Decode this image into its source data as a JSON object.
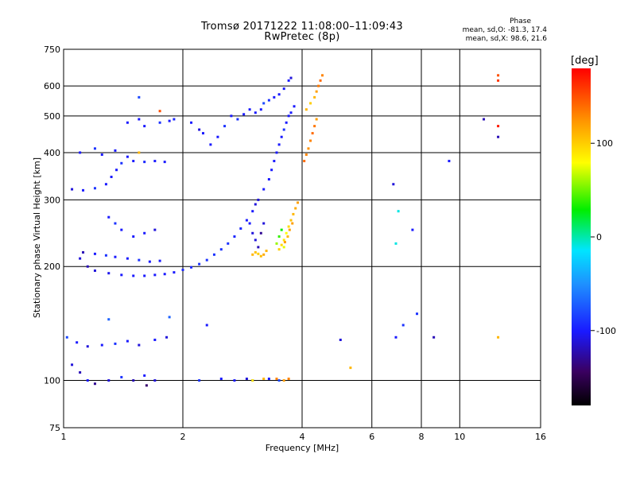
{
  "header": {
    "title_line1": "Tromsø 20171222 11:08:00–11:09:43",
    "title_line2": "RwPretec (8p)",
    "phase_title": "Phase",
    "phase_line1": "mean, sd,O:  -81.3, 17.4",
    "phase_line2": "mean, sd,X:  98.6, 21.6"
  },
  "colorbar": {
    "unit": "[deg]",
    "ticks": [
      "100",
      "0",
      "-100"
    ],
    "tick_values": [
      100,
      0,
      -100
    ],
    "range": [
      -180,
      180
    ]
  },
  "chart_data": {
    "type": "scatter",
    "title": "Tromsø 20171222 11:08:00–11:09:43",
    "subtitle": "RwPretec (8p)",
    "xlabel": "Frequency [MHz]",
    "ylabel": "Stationary phase Virtual Height [km]",
    "x_scale": "log",
    "y_scale": "log",
    "xlim": [
      1,
      16
    ],
    "ylim": [
      75,
      750
    ],
    "xticks": [
      "1",
      "2",
      "4",
      "6",
      "8",
      "10",
      "16"
    ],
    "xtick_values": [
      1,
      2,
      4,
      6,
      8,
      10,
      16
    ],
    "yticks": [
      "75",
      "100",
      "200",
      "300",
      "400",
      "500",
      "600",
      "750"
    ],
    "ytick_values": [
      75,
      100,
      200,
      300,
      400,
      500,
      600,
      750
    ],
    "grid": true,
    "series": [
      {
        "name": "O",
        "points": [
          [
            1.05,
            110,
            -110
          ],
          [
            1.1,
            105,
            -120
          ],
          [
            1.15,
            100,
            -100
          ],
          [
            1.2,
            98,
            -130
          ],
          [
            1.3,
            100,
            -110
          ],
          [
            1.4,
            102,
            -90
          ],
          [
            1.5,
            100,
            -120
          ],
          [
            1.6,
            103,
            -100
          ],
          [
            1.7,
            100,
            -110
          ],
          [
            1.62,
            97,
            -140
          ],
          [
            1.02,
            130,
            -80
          ],
          [
            1.08,
            126,
            -100
          ],
          [
            1.15,
            123,
            -110
          ],
          [
            1.25,
            124,
            -100
          ],
          [
            1.35,
            125,
            -90
          ],
          [
            1.45,
            127,
            -100
          ],
          [
            1.55,
            124,
            -110
          ],
          [
            1.7,
            128,
            -100
          ],
          [
            1.82,
            130,
            -110
          ],
          [
            1.3,
            145,
            -70
          ],
          [
            1.1,
            210,
            -110
          ],
          [
            1.15,
            200,
            -120
          ],
          [
            1.2,
            195,
            -110
          ],
          [
            1.3,
            192,
            -105
          ],
          [
            1.4,
            190,
            -100
          ],
          [
            1.5,
            189,
            -100
          ],
          [
            1.6,
            189,
            -100
          ],
          [
            1.7,
            190,
            -100
          ],
          [
            1.8,
            191,
            -100
          ],
          [
            1.9,
            193,
            -100
          ],
          [
            2.0,
            196,
            -95
          ],
          [
            2.1,
            199,
            -95
          ],
          [
            2.2,
            203,
            -90
          ],
          [
            2.3,
            208,
            -90
          ],
          [
            2.4,
            215,
            -90
          ],
          [
            2.5,
            222,
            -90
          ],
          [
            2.6,
            230,
            -90
          ],
          [
            2.7,
            240,
            -95
          ],
          [
            2.8,
            252,
            -95
          ],
          [
            2.9,
            265,
            -100
          ],
          [
            3.0,
            280,
            -100
          ],
          [
            3.05,
            292,
            -110
          ],
          [
            1.12,
            218,
            -120
          ],
          [
            1.2,
            216,
            -100
          ],
          [
            1.28,
            214,
            -90
          ],
          [
            1.35,
            212,
            -100
          ],
          [
            1.45,
            210,
            -100
          ],
          [
            1.55,
            208,
            -90
          ],
          [
            1.65,
            206,
            -100
          ],
          [
            1.75,
            207,
            -100
          ],
          [
            1.05,
            320,
            -110
          ],
          [
            1.12,
            318,
            -100
          ],
          [
            1.2,
            322,
            -90
          ],
          [
            1.28,
            330,
            -100
          ],
          [
            1.32,
            345,
            -100
          ],
          [
            1.36,
            360,
            -100
          ],
          [
            1.4,
            375,
            -90
          ],
          [
            1.45,
            390,
            -100
          ],
          [
            1.5,
            380,
            -100
          ],
          [
            1.6,
            378,
            -95
          ],
          [
            1.7,
            380,
            -100
          ],
          [
            1.8,
            378,
            -100
          ],
          [
            1.1,
            400,
            -100
          ],
          [
            1.2,
            410,
            -90
          ],
          [
            1.25,
            395,
            -100
          ],
          [
            1.35,
            405,
            -100
          ],
          [
            1.45,
            480,
            -100
          ],
          [
            1.55,
            490,
            -100
          ],
          [
            1.6,
            470,
            -100
          ],
          [
            1.75,
            480,
            -90
          ],
          [
            1.85,
            485,
            -100
          ],
          [
            1.9,
            490,
            -95
          ],
          [
            1.3,
            270,
            -100
          ],
          [
            1.35,
            260,
            -90
          ],
          [
            1.4,
            250,
            -100
          ],
          [
            1.5,
            240,
            -100
          ],
          [
            1.6,
            245,
            -100
          ],
          [
            1.7,
            250,
            -110
          ],
          [
            1.55,
            560,
            -80
          ],
          [
            2.1,
            480,
            -100
          ],
          [
            2.2,
            460,
            -110
          ],
          [
            2.25,
            450,
            -100
          ],
          [
            2.35,
            420,
            -100
          ],
          [
            2.45,
            440,
            -100
          ],
          [
            2.55,
            470,
            -90
          ],
          [
            2.65,
            500,
            -100
          ],
          [
            2.75,
            490,
            -90
          ],
          [
            2.85,
            505,
            -100
          ],
          [
            2.95,
            520,
            -100
          ],
          [
            3.05,
            510,
            -100
          ],
          [
            3.15,
            520,
            -100
          ],
          [
            3.2,
            540,
            -80
          ],
          [
            3.3,
            550,
            -90
          ],
          [
            3.4,
            560,
            -100
          ],
          [
            3.5,
            570,
            -100
          ],
          [
            3.6,
            590,
            -100
          ],
          [
            3.7,
            620,
            -100
          ],
          [
            3.75,
            630,
            -110
          ],
          [
            3.1,
            300,
            -110
          ],
          [
            3.2,
            320,
            -100
          ],
          [
            3.3,
            340,
            -100
          ],
          [
            3.35,
            360,
            -100
          ],
          [
            3.4,
            380,
            -100
          ],
          [
            3.45,
            400,
            -100
          ],
          [
            3.5,
            420,
            -100
          ],
          [
            3.55,
            440,
            -100
          ],
          [
            3.6,
            460,
            -90
          ],
          [
            3.65,
            480,
            -100
          ],
          [
            3.7,
            500,
            -100
          ],
          [
            3.75,
            510,
            -100
          ],
          [
            3.82,
            530,
            -100
          ],
          [
            2.95,
            260,
            -100
          ],
          [
            3.0,
            245,
            -110
          ],
          [
            3.05,
            235,
            -110
          ],
          [
            3.1,
            225,
            -120
          ],
          [
            3.15,
            245,
            -130
          ],
          [
            3.2,
            260,
            -110
          ],
          [
            2.2,
            100,
            -90
          ],
          [
            2.5,
            101,
            -100
          ],
          [
            2.7,
            100,
            -100
          ],
          [
            2.9,
            101,
            -110
          ],
          [
            3.0,
            100,
            -100
          ],
          [
            3.3,
            101,
            -100
          ],
          [
            3.5,
            100,
            -80
          ],
          [
            1.85,
            147,
            -70
          ],
          [
            2.3,
            140,
            -100
          ],
          [
            5.0,
            128,
            -110
          ],
          [
            6.8,
            330,
            -110
          ],
          [
            6.9,
            130,
            -100
          ],
          [
            7.2,
            140,
            -90
          ],
          [
            7.6,
            250,
            -100
          ],
          [
            7.8,
            150,
            -90
          ],
          [
            8.6,
            130,
            -120
          ],
          [
            9.4,
            380,
            -100
          ],
          [
            11.5,
            490,
            -120
          ],
          [
            12.5,
            440,
            -120
          ],
          [
            7.0,
            280,
            -10
          ],
          [
            6.9,
            230,
            -10
          ]
        ]
      },
      {
        "name": "X",
        "points": [
          [
            3.0,
            215,
            110
          ],
          [
            3.05,
            218,
            105
          ],
          [
            3.1,
            216,
            100
          ],
          [
            3.15,
            213,
            108
          ],
          [
            3.2,
            215,
            115
          ],
          [
            3.25,
            220,
            110
          ],
          [
            3.5,
            222,
            100
          ],
          [
            3.55,
            228,
            95
          ],
          [
            3.6,
            235,
            90
          ],
          [
            3.65,
            245,
            80
          ],
          [
            3.7,
            255,
            95
          ],
          [
            3.75,
            265,
            105
          ],
          [
            3.8,
            275,
            110
          ],
          [
            3.85,
            285,
            115
          ],
          [
            3.9,
            295,
            120
          ],
          [
            3.45,
            230,
            60
          ],
          [
            3.5,
            240,
            40
          ],
          [
            3.55,
            250,
            30
          ],
          [
            3.6,
            225,
            75
          ],
          [
            3.62,
            232,
            120
          ],
          [
            3.68,
            240,
            110
          ],
          [
            3.72,
            250,
            120
          ],
          [
            3.78,
            260,
            120
          ],
          [
            4.05,
            380,
            140
          ],
          [
            4.1,
            395,
            130
          ],
          [
            4.15,
            410,
            125
          ],
          [
            4.2,
            430,
            130
          ],
          [
            4.25,
            450,
            140
          ],
          [
            4.3,
            470,
            135
          ],
          [
            4.35,
            490,
            120
          ],
          [
            4.1,
            520,
            110
          ],
          [
            4.2,
            540,
            100
          ],
          [
            4.3,
            560,
            110
          ],
          [
            4.35,
            580,
            120
          ],
          [
            4.4,
            600,
            135
          ],
          [
            4.45,
            620,
            140
          ],
          [
            4.5,
            640,
            130
          ],
          [
            3.2,
            101,
            110
          ],
          [
            3.45,
            101,
            130
          ],
          [
            3.6,
            100,
            120
          ],
          [
            3.7,
            101,
            130
          ],
          [
            3.0,
            100,
            90
          ],
          [
            12.5,
            640,
            150
          ],
          [
            12.5,
            620,
            160
          ],
          [
            12.5,
            470,
            170
          ],
          [
            12.5,
            130,
            110
          ],
          [
            5.3,
            108,
            110
          ],
          [
            1.55,
            400,
            110
          ],
          [
            1.75,
            515,
            150
          ]
        ]
      }
    ]
  }
}
